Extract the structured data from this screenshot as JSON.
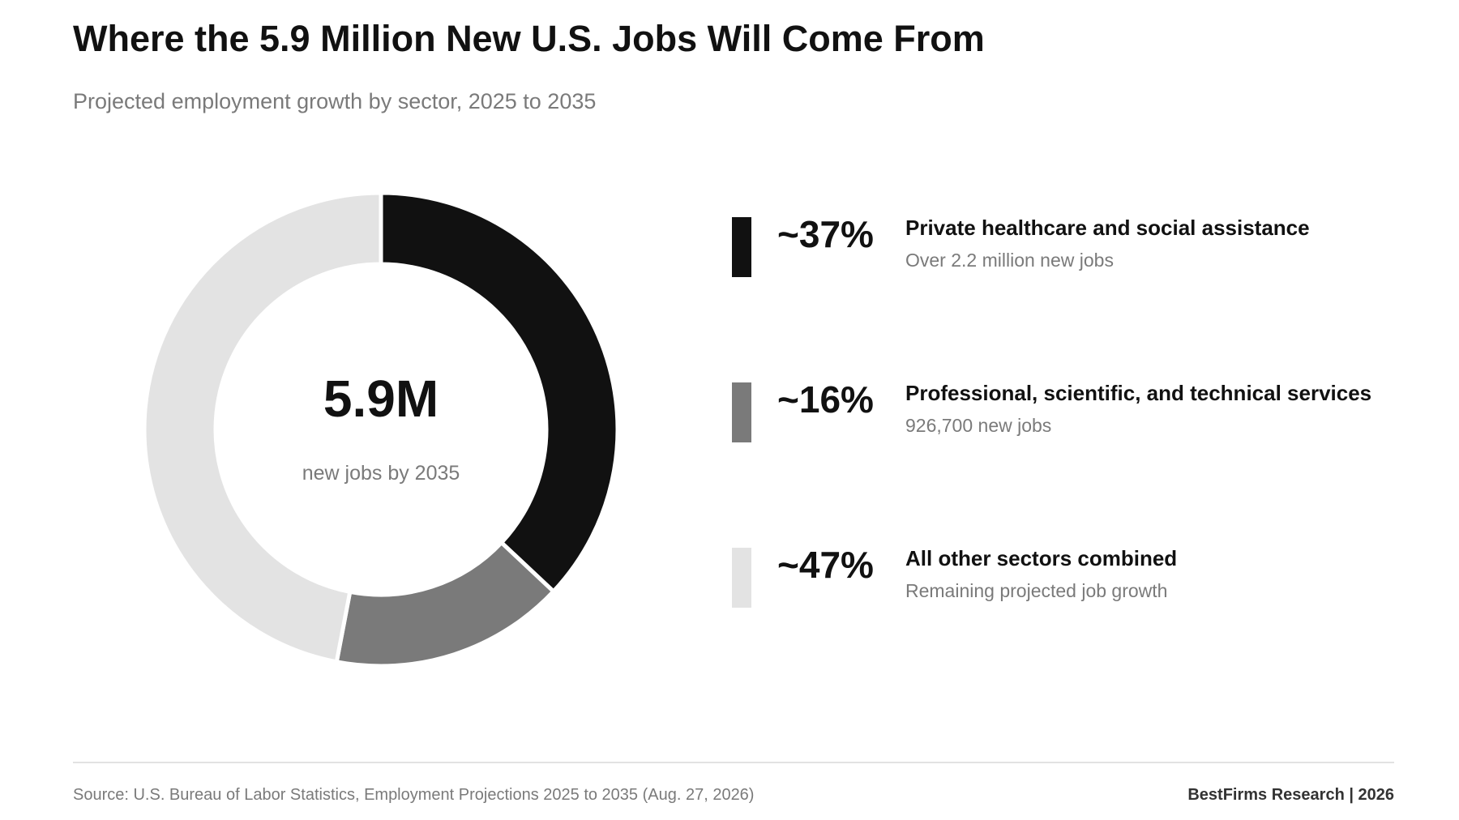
{
  "title": "Where the 5.9 Million New U.S. Jobs Will Come From",
  "subtitle": "Projected employment growth by sector, 2025 to 2035",
  "center": {
    "value": "5.9M",
    "label": "new jobs by 2035"
  },
  "chart_data": {
    "type": "pie",
    "categories": [
      "Private healthcare and social assistance",
      "Professional, scientific, and technical services",
      "All other sectors combined"
    ],
    "values": [
      37,
      16,
      47
    ],
    "value_labels": [
      "~37%",
      "~16%",
      "~47%"
    ],
    "descriptions": [
      "Over 2.2 million new jobs",
      "926,700 new jobs",
      "Remaining projected job growth"
    ],
    "colors": [
      "#111111",
      "#7a7a7a",
      "#e3e3e3"
    ],
    "legend_position": "right"
  },
  "footer": {
    "source": "Source: U.S. Bureau of Labor Statistics, Employment Projections 2025 to 2035 (Aug. 27, 2026)",
    "credit": "BestFirms Research  |  2026"
  }
}
